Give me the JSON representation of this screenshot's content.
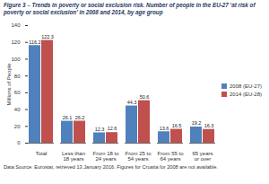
{
  "chart_data": {
    "type": "bar",
    "title": "Figure 3 – Trends in poverty or social exclusion risk. Number of people in the EU-27 ‘at risk of poverty or social exclusion’ in 2008 and 2014, by age group",
    "y_label": "Millions of People",
    "categories": [
      "Total",
      "Less than 18 years",
      "From 18 to 24 years",
      "From 25 to 54 years",
      "From 55 to 64 years",
      "65 years or over"
    ],
    "series": [
      {
        "name": "2008 (EU-27)",
        "color": "#4f81bd",
        "values": [
          116.2,
          26.1,
          12.3,
          44.3,
          13.6,
          19.2
        ]
      },
      {
        "name": "2014 (EU-28)",
        "color": "#c0504d",
        "values": [
          122.3,
          26.2,
          12.6,
          50.6,
          16.5,
          16.3
        ]
      }
    ],
    "ylim": [
      0,
      140
    ],
    "yticks": [
      0,
      20,
      40,
      60,
      80,
      100,
      120,
      140
    ],
    "grid": false,
    "legend": "right",
    "data_labels": true,
    "source": "Data Source: Eurostat, retrieved 13 January 2016. Figures for Croatia for 2008 are not available."
  }
}
